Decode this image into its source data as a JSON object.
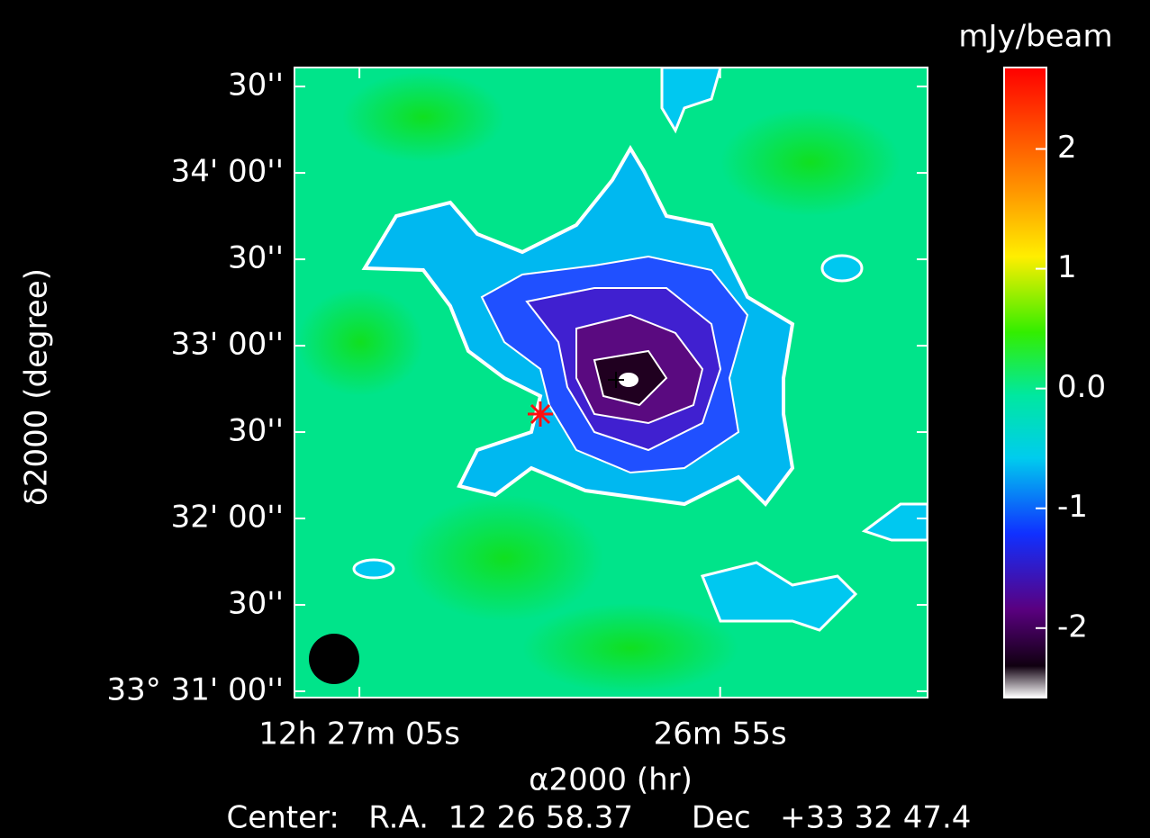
{
  "chart_data": {
    "type": "image",
    "ylabel": "δ2000 (degree)",
    "xlabel": "α2000 (hr)",
    "footer": "Center:   R.A.  12 26 58.37      Dec   +33 32 47.4",
    "ylim": [
      -2.2,
      216.6
    ],
    "yticks": [
      {
        "value": 0,
        "label": "33° 31' 00''"
      },
      {
        "value": 30,
        "label": "30''"
      },
      {
        "value": 60,
        "label": "32' 00''"
      },
      {
        "value": 90,
        "label": "30''"
      },
      {
        "value": 120,
        "label": "33' 00''"
      },
      {
        "value": 150,
        "label": "30''"
      },
      {
        "value": 180,
        "label": "34' 00''"
      },
      {
        "value": 210,
        "label": "30''"
      }
    ],
    "xlim": [
      66.8,
      49.25
    ],
    "xticks": [
      {
        "value": 65,
        "label": "12h 27m 05s"
      },
      {
        "value": 55,
        "label": "26m 55s"
      }
    ],
    "colorbar": {
      "title": "mJy/beam",
      "clim": [
        -2.58,
        2.68
      ],
      "ticks": [
        -2,
        -1,
        {
          "value": 0,
          "label": "0.0"
        },
        1,
        2
      ]
    }
  }
}
